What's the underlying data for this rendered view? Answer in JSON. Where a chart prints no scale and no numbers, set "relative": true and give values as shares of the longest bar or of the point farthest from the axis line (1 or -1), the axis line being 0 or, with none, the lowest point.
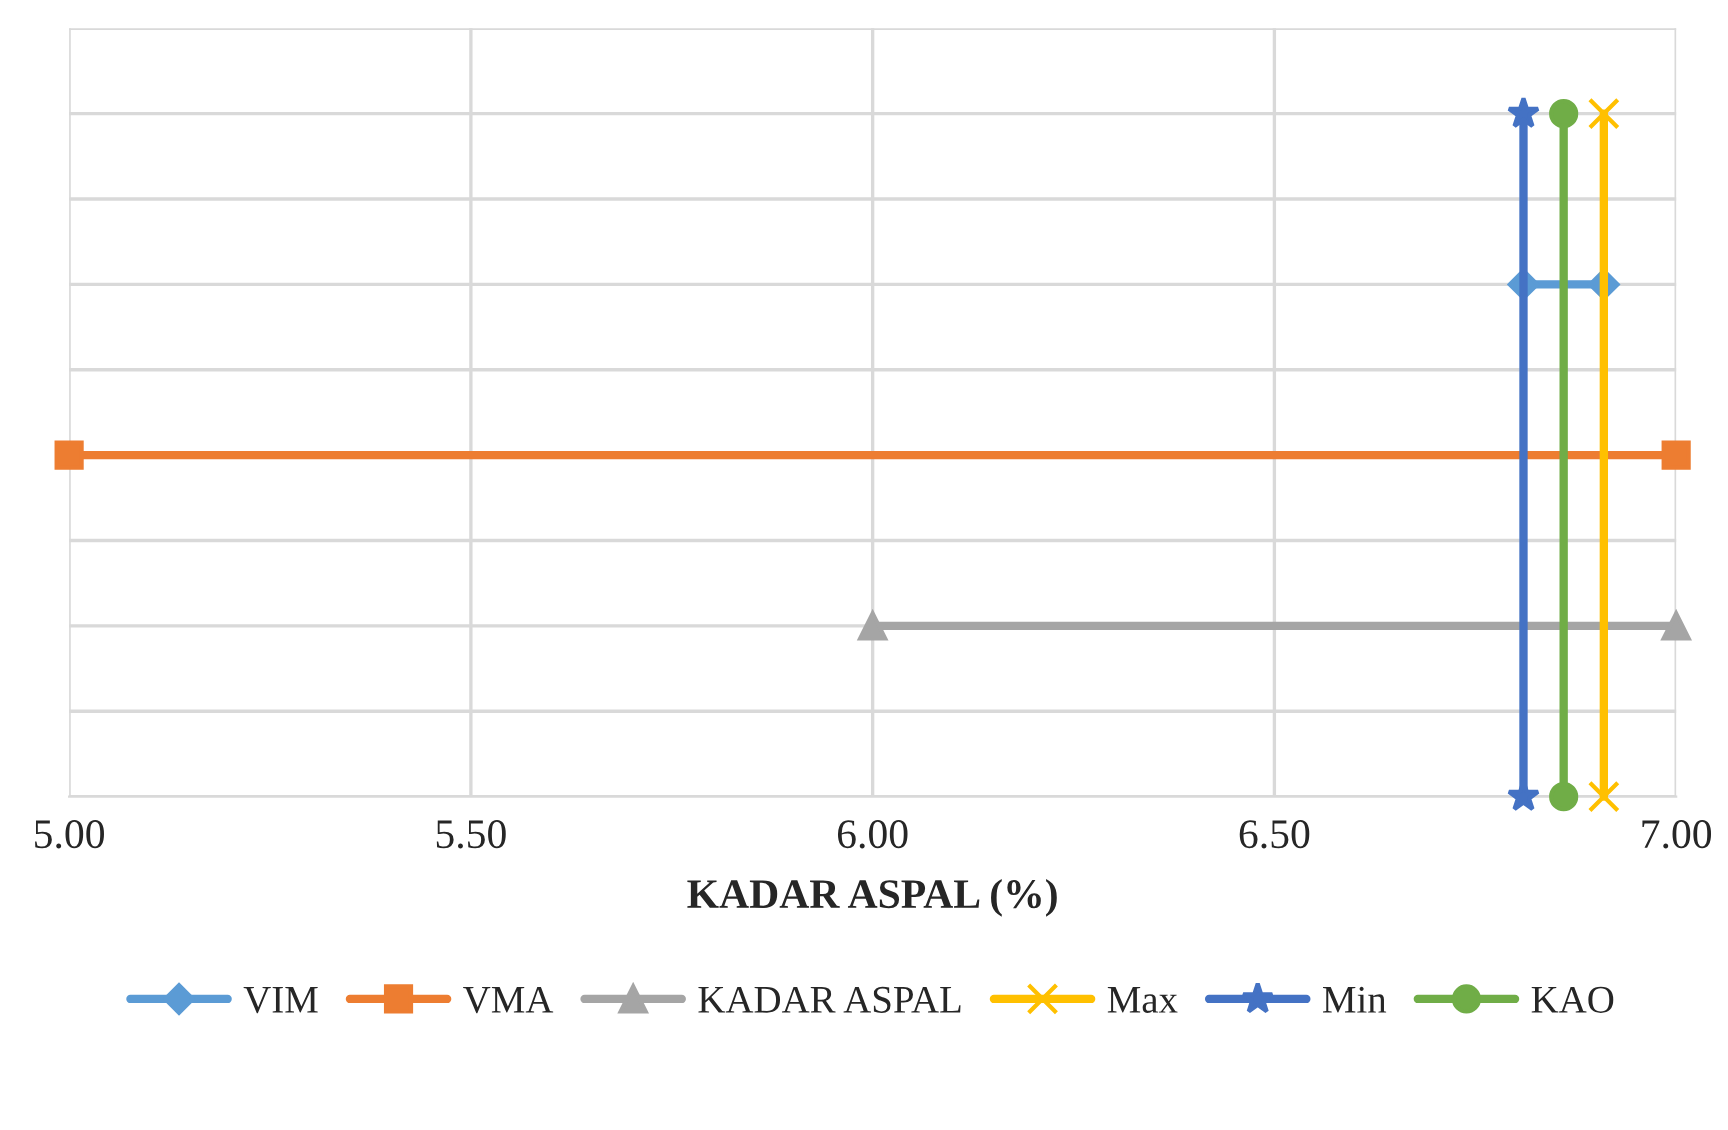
{
  "chart_data": {
    "type": "line",
    "relative": true,
    "xlabel": "KADAR ASPAL (%)",
    "xlim": [
      5.0,
      7.0
    ],
    "xticks": [
      {
        "value": 5.0,
        "label": "5.00"
      },
      {
        "value": 5.5,
        "label": "5.50"
      },
      {
        "value": 6.0,
        "label": "6.00"
      },
      {
        "value": 6.5,
        "label": "6.50"
      },
      {
        "value": 7.0,
        "label": "7.00"
      }
    ],
    "tick_labels": "x",
    "grid": true,
    "legend": "bottom",
    "series": [
      {
        "name": "VIM",
        "color": "#5b9bd5",
        "marker": "diamond",
        "x": [
          6.81,
          6.91
        ],
        "values": [
          0.75,
          0.75
        ]
      },
      {
        "name": "VMA",
        "color": "#ed7d31",
        "marker": "square",
        "x": [
          5.0,
          7.0
        ],
        "values": [
          0.5,
          0.5
        ]
      },
      {
        "name": "KADAR ASPAL",
        "color": "#a5a5a5",
        "marker": "triangle",
        "x": [
          6.0,
          7.0
        ],
        "values": [
          0.25,
          0.25
        ]
      },
      {
        "name": "Max",
        "color": "#ffc000",
        "marker": "cross",
        "x": [
          6.91,
          6.91
        ],
        "values": [
          0,
          1
        ]
      },
      {
        "name": "Min",
        "color": "#4472c4",
        "marker": "star",
        "x": [
          6.81,
          6.81
        ],
        "values": [
          0,
          1
        ]
      },
      {
        "name": "KAO",
        "color": "#70ad47",
        "marker": "circle",
        "x": [
          6.86,
          6.86
        ],
        "values": [
          0,
          1
        ]
      }
    ]
  }
}
